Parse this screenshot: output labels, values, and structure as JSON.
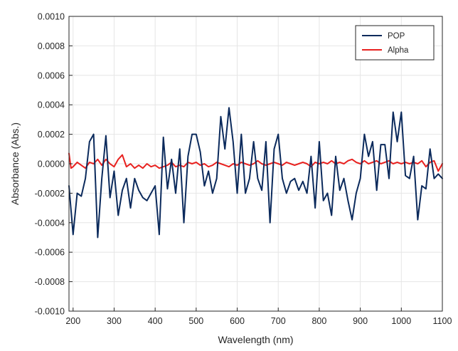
{
  "chart_data": {
    "type": "line",
    "xlabel": "Wavelength (nm)",
    "ylabel": "Absorbance (Abs.)",
    "xlim": [
      190,
      1100
    ],
    "ylim": [
      -0.001,
      0.001
    ],
    "xticks": [
      200,
      300,
      400,
      500,
      600,
      700,
      800,
      900,
      1000,
      1100
    ],
    "yticks": [
      -0.001,
      -0.0008,
      -0.0006,
      -0.0004,
      -0.0002,
      0,
      0.0002,
      0.0004,
      0.0006,
      0.0008,
      0.001
    ],
    "xtick_labels": [
      "200",
      "300",
      "400",
      "500",
      "600",
      "700",
      "800",
      "900",
      "1000",
      "1100"
    ],
    "ytick_labels": [
      "-0.0010",
      "-0.0008",
      "-0.0006",
      "-0.0004",
      "-0.0002",
      "0.0000",
      "0.0002",
      "0.0004",
      "0.0006",
      "0.0008",
      "0.0010"
    ],
    "grid": true,
    "legend": {
      "placement": "top-right"
    },
    "series": [
      {
        "name": "POP",
        "color": "#0b2a5c",
        "x": [
          190,
          200,
          210,
          220,
          230,
          240,
          250,
          260,
          270,
          280,
          290,
          300,
          310,
          320,
          330,
          340,
          350,
          360,
          370,
          380,
          390,
          400,
          410,
          420,
          430,
          440,
          450,
          460,
          470,
          480,
          490,
          500,
          510,
          520,
          530,
          540,
          550,
          560,
          570,
          580,
          590,
          600,
          610,
          620,
          630,
          640,
          650,
          660,
          670,
          680,
          690,
          700,
          710,
          720,
          730,
          740,
          750,
          760,
          770,
          780,
          790,
          800,
          810,
          820,
          830,
          840,
          850,
          860,
          870,
          880,
          890,
          900,
          910,
          920,
          930,
          940,
          950,
          960,
          970,
          980,
          990,
          1000,
          1010,
          1020,
          1030,
          1040,
          1050,
          1060,
          1070,
          1080,
          1090,
          1100
        ],
        "y": [
          -0.00015,
          -0.00048,
          -0.0002,
          -0.00022,
          -0.0001,
          0.00015,
          0.0002,
          -0.0005,
          -0.0001,
          0.00019,
          -0.00023,
          -5e-05,
          -0.00035,
          -0.00018,
          -0.0001,
          -0.0003,
          -0.0001,
          -0.00018,
          -0.00023,
          -0.00025,
          -0.0002,
          -0.00015,
          -0.00048,
          0.00018,
          -0.00017,
          3e-05,
          -0.0002,
          0.0001,
          -0.0004,
          5e-05,
          0.0002,
          0.0002,
          8e-05,
          -0.00015,
          -5e-05,
          -0.0002,
          -0.0001,
          0.00032,
          0.0001,
          0.00038,
          0.00015,
          -0.0002,
          0.0002,
          -0.0002,
          -0.0001,
          0.00015,
          -0.0001,
          -0.00018,
          0.00015,
          -0.0004,
          0.0001,
          0.0002,
          -0.0001,
          -0.0002,
          -0.00012,
          -0.0001,
          -0.00018,
          -0.00012,
          -0.0002,
          5e-05,
          -0.0003,
          0.00015,
          -0.00025,
          -0.0002,
          -0.00035,
          5e-05,
          -0.00018,
          -0.0001,
          -0.00025,
          -0.00038,
          -0.0002,
          -0.0001,
          0.0002,
          5e-05,
          0.00015,
          -0.00018,
          0.00013,
          0.00013,
          -0.0001,
          0.00035,
          0.00015,
          0.00035,
          -8e-05,
          -0.0001,
          5e-05,
          -0.00038,
          -0.00015,
          -0.00017,
          0.0001,
          -0.0001,
          -7e-05,
          -0.0001
        ]
      },
      {
        "name": "Alpha",
        "color": "#e8211f",
        "x": [
          190,
          195,
          200,
          210,
          220,
          230,
          240,
          250,
          260,
          270,
          280,
          290,
          300,
          310,
          320,
          330,
          340,
          350,
          360,
          370,
          380,
          390,
          400,
          410,
          420,
          430,
          440,
          450,
          460,
          470,
          480,
          490,
          500,
          510,
          520,
          530,
          540,
          550,
          560,
          570,
          580,
          590,
          600,
          610,
          620,
          630,
          640,
          650,
          660,
          670,
          680,
          690,
          700,
          710,
          720,
          730,
          740,
          750,
          760,
          770,
          780,
          790,
          800,
          810,
          820,
          830,
          840,
          850,
          860,
          870,
          880,
          890,
          900,
          910,
          920,
          930,
          940,
          950,
          960,
          970,
          980,
          990,
          1000,
          1010,
          1020,
          1030,
          1040,
          1050,
          1060,
          1070,
          1080,
          1090,
          1100
        ],
        "y": [
          7e-05,
          -3e-05,
          -2e-05,
          1e-05,
          -1e-05,
          -3e-05,
          1e-05,
          0.0,
          3e-05,
          -1e-05,
          3e-05,
          0.0,
          -2e-05,
          3e-05,
          6e-05,
          -2e-05,
          0.0,
          -3e-05,
          -1e-05,
          -3e-05,
          0.0,
          -2e-05,
          -1e-05,
          -3e-05,
          -2e-05,
          -1e-05,
          1e-05,
          -2e-05,
          -1e-05,
          -2e-05,
          1e-05,
          0.0,
          1e-05,
          -1e-05,
          0.0,
          -2e-05,
          -1e-05,
          1e-05,
          0.0,
          -1e-05,
          -2e-05,
          0.0,
          -1e-05,
          1e-05,
          0.0,
          -1e-05,
          0.0,
          2e-05,
          0.0,
          -1e-05,
          0.0,
          1e-05,
          0.0,
          -1e-05,
          1e-05,
          0.0,
          -1e-05,
          0.0,
          1e-05,
          0.0,
          -2e-05,
          1e-05,
          0.0,
          1e-05,
          0.0,
          2e-05,
          0.0,
          1e-05,
          0.0,
          2e-05,
          3e-05,
          1e-05,
          0.0,
          2e-05,
          0.0,
          1e-05,
          2e-05,
          0.0,
          1e-05,
          2e-05,
          0.0,
          1e-05,
          0.0,
          1e-05,
          0.0,
          1e-05,
          0.0,
          2e-05,
          -2e-05,
          1e-05,
          2e-05,
          -5e-05,
          0.0
        ]
      }
    ]
  }
}
